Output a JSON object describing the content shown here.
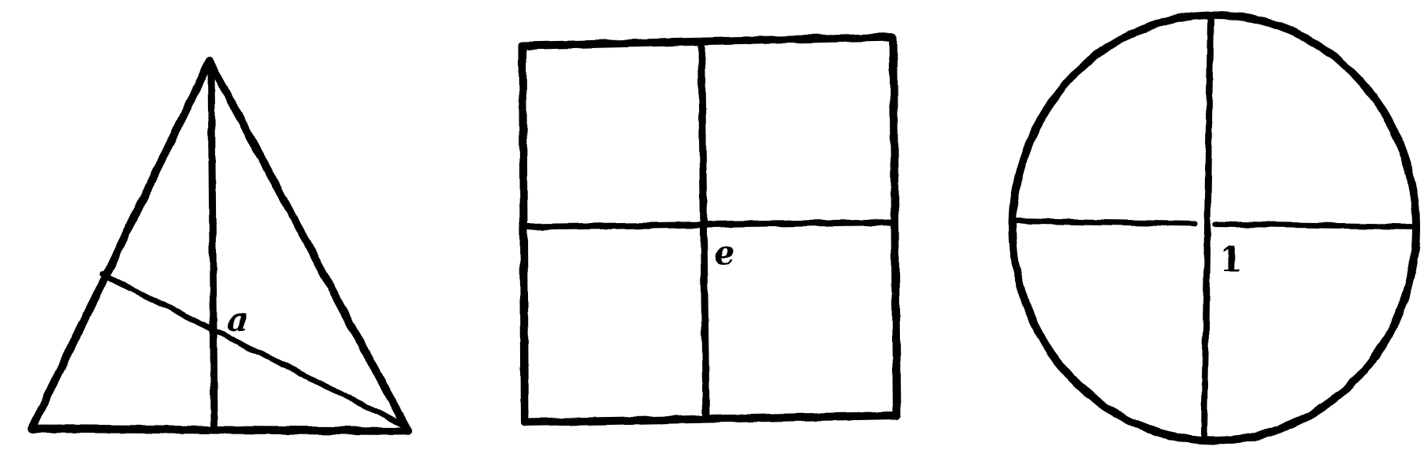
{
  "figures": [
    {
      "shape": "triangle",
      "label": "a"
    },
    {
      "shape": "square",
      "label": "e"
    },
    {
      "shape": "circle",
      "label": "1"
    }
  ],
  "colors": {
    "ink": "#000000",
    "paper": "#ffffff"
  }
}
